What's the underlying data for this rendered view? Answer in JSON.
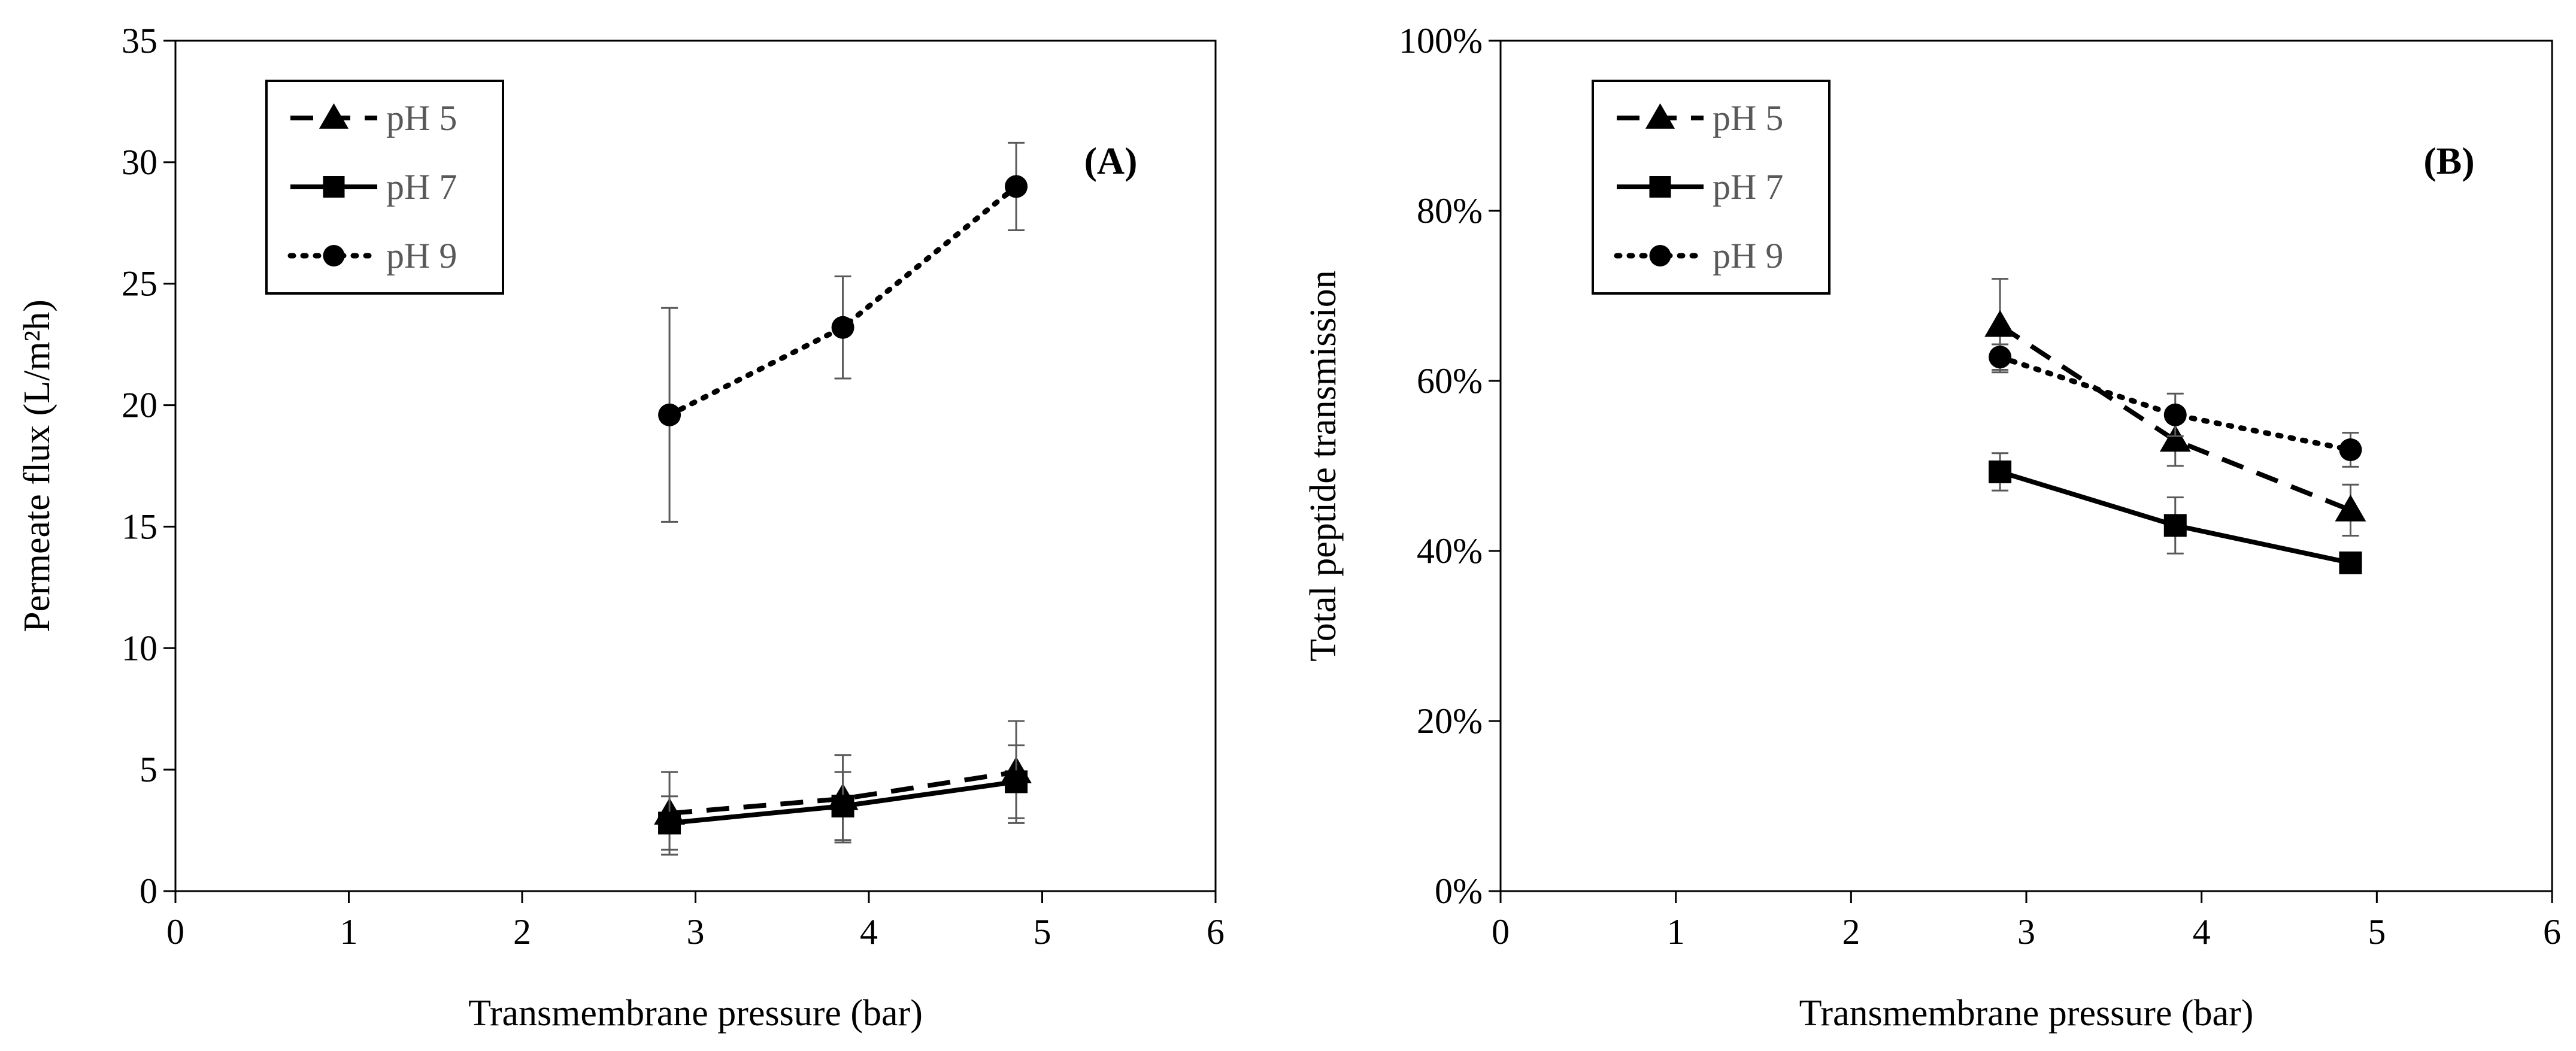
{
  "chart_data": [
    {
      "type": "line",
      "panel_label": "(A)",
      "xlabel": "Transmembrane pressure (bar)",
      "ylabel": "Permeate flux (L/m²h)",
      "xlim": [
        0,
        6
      ],
      "ylim": [
        0,
        35
      ],
      "x_ticks": [
        "0",
        "1",
        "2",
        "3",
        "4",
        "5",
        "6"
      ],
      "y_ticks": [
        "0",
        "5",
        "10",
        "15",
        "20",
        "25",
        "30",
        "35"
      ],
      "grid": false,
      "legend": {
        "position": "top-left"
      },
      "series": [
        {
          "name": "pH 5",
          "line": "dashed",
          "marker": "triangle",
          "x": [
            2.85,
            3.85,
            4.85
          ],
          "y": [
            3.2,
            3.8,
            4.9
          ],
          "err": [
            1.7,
            1.8,
            2.1
          ]
        },
        {
          "name": "pH 7",
          "line": "solid",
          "marker": "square",
          "x": [
            2.85,
            3.85,
            4.85
          ],
          "y": [
            2.8,
            3.5,
            4.5
          ],
          "err": [
            1.1,
            1.4,
            1.5
          ]
        },
        {
          "name": "pH 9",
          "line": "dotted",
          "marker": "circle",
          "x": [
            2.85,
            3.85,
            4.85
          ],
          "y": [
            19.6,
            23.2,
            29.0
          ],
          "err": [
            4.4,
            2.1,
            1.8
          ]
        }
      ]
    },
    {
      "type": "line",
      "panel_label": "(B)",
      "xlabel": "Transmembrane pressure (bar)",
      "ylabel": "Total peptide transmission",
      "xlim": [
        0,
        6
      ],
      "ylim": [
        0,
        100
      ],
      "x_ticks": [
        "0",
        "1",
        "2",
        "3",
        "4",
        "5",
        "6"
      ],
      "y_ticks": [
        "0%",
        "20%",
        "40%",
        "60%",
        "80%",
        "100%"
      ],
      "grid": false,
      "legend": {
        "position": "top-left"
      },
      "series": [
        {
          "name": "pH 5",
          "line": "dashed",
          "marker": "triangle",
          "x": [
            2.85,
            3.85,
            4.85
          ],
          "y": [
            66.5,
            53.0,
            44.8
          ],
          "err": [
            5.5,
            3.0,
            3.0
          ]
        },
        {
          "name": "pH 7",
          "line": "solid",
          "marker": "square",
          "x": [
            2.85,
            3.85,
            4.85
          ],
          "y": [
            49.3,
            43.0,
            38.6
          ],
          "err": [
            2.2,
            3.3,
            0.8
          ]
        },
        {
          "name": "pH 9",
          "line": "dotted",
          "marker": "circle",
          "x": [
            2.85,
            3.85,
            4.85
          ],
          "y": [
            62.8,
            56.0,
            51.9
          ],
          "err": [
            1.5,
            2.5,
            2.0
          ]
        }
      ]
    }
  ]
}
